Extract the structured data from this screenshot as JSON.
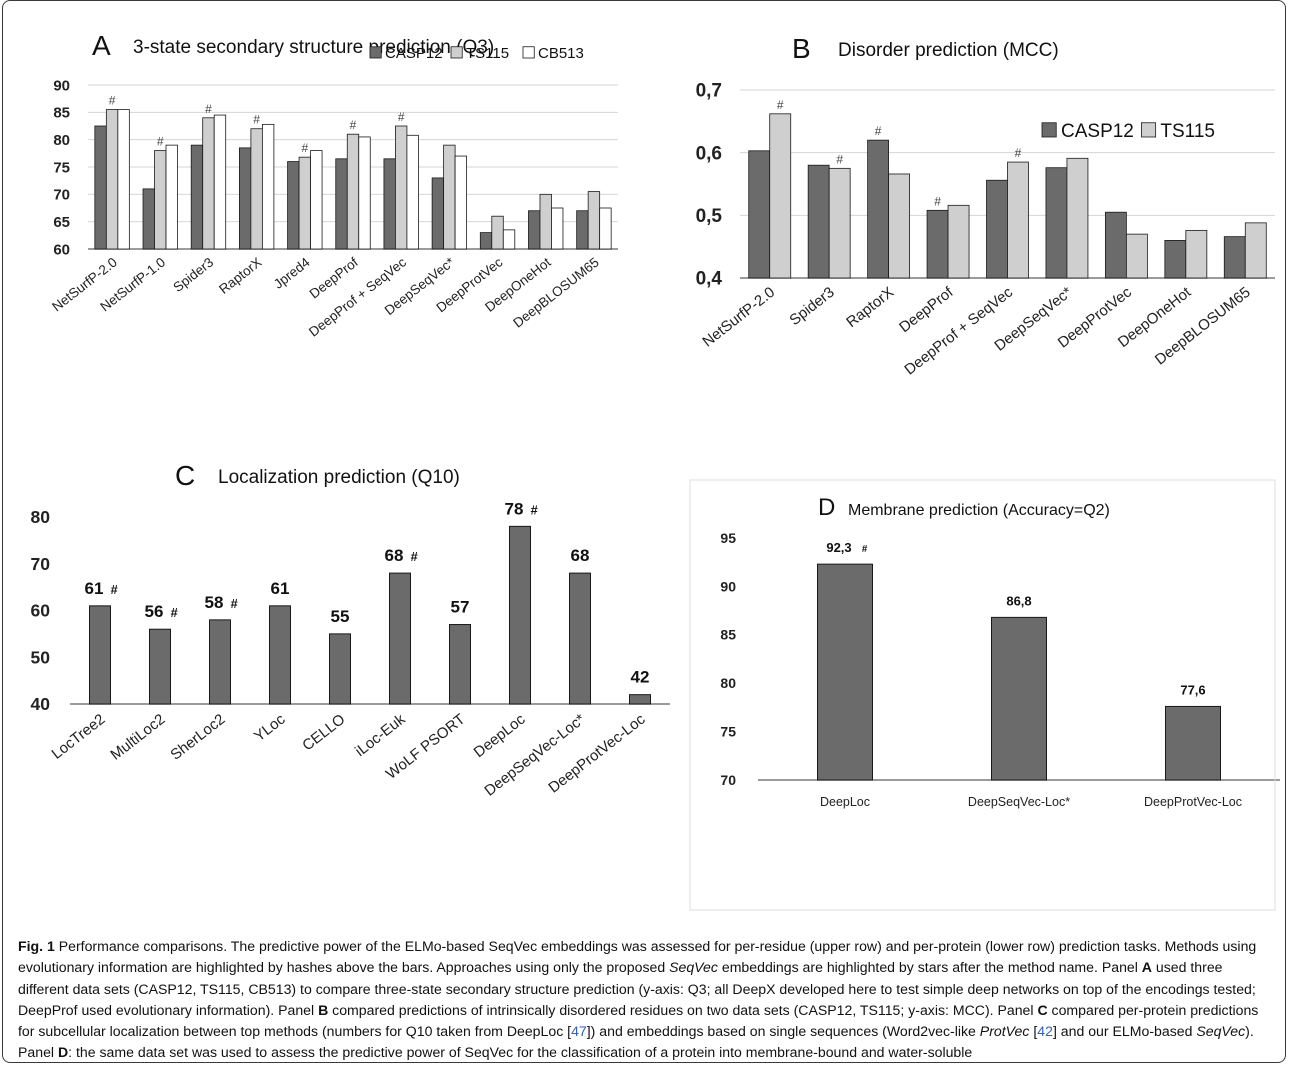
{
  "colors": {
    "bar_dark": "#6b6b6b",
    "bar_light": "#cfcfcf",
    "bar_white": "#ffffff",
    "outline": "#1a1a1a",
    "grid": "#d6d6d6",
    "hash": "#444444"
  },
  "chart_data": [
    {
      "panel": "A",
      "type": "bar",
      "title": "3-state secondary structure prediction (Q3)",
      "ylim": [
        60,
        90
      ],
      "yticks": [
        "60",
        "65",
        "70",
        "75",
        "80",
        "85",
        "90"
      ],
      "grid": true,
      "legend_position": "top-right",
      "categories": [
        "NetSurfP-2.0",
        "NetSurfP-1.0",
        "Spider3",
        "RaptorX",
        "Jpred4",
        "DeepProf",
        "DeepProf + SeqVec",
        "DeepSeqVec*",
        "DeepProtVec",
        "DeepOneHot",
        "DeepBLOSUM65"
      ],
      "series": [
        {
          "name": "CASP12",
          "values": [
            82.5,
            71,
            79,
            78.5,
            76,
            76.5,
            76.5,
            73,
            63,
            67,
            67
          ]
        },
        {
          "name": "TS115",
          "values": [
            85.5,
            78,
            84,
            82,
            76.8,
            81,
            82.5,
            79,
            66,
            70,
            70.5
          ]
        },
        {
          "name": "CB513",
          "values": [
            85.5,
            79,
            84.5,
            82.8,
            78,
            80.5,
            80.8,
            77,
            63.5,
            67.5,
            67.5
          ]
        }
      ],
      "hash_marks": [
        {
          "category": 0,
          "series": 1
        },
        {
          "category": 1,
          "series": 1
        },
        {
          "category": 2,
          "series": 1
        },
        {
          "category": 3,
          "series": 1
        },
        {
          "category": 4,
          "series": 1
        },
        {
          "category": 5,
          "series": 1
        },
        {
          "category": 6,
          "series": 1
        }
      ],
      "hash_symbol": "#"
    },
    {
      "panel": "B",
      "type": "bar",
      "title": "Disorder prediction (MCC)",
      "ylim": [
        0.4,
        0.7
      ],
      "yticks": [
        "0,4",
        "0,5",
        "0,6",
        "0,7"
      ],
      "grid": true,
      "legend_position": "top-right",
      "categories": [
        "NetSurfP-2.0",
        "Spider3",
        "RaptorX",
        "DeepProf",
        "DeepProf + SeqVec",
        "DeepSeqVec*",
        "DeepProtVec",
        "DeepOneHot",
        "DeepBLOSUM65"
      ],
      "series": [
        {
          "name": "CASP12",
          "values": [
            0.603,
            0.58,
            0.62,
            0.508,
            0.556,
            0.576,
            0.505,
            0.46,
            0.466
          ]
        },
        {
          "name": "TS115",
          "values": [
            0.662,
            0.575,
            0.566,
            0.516,
            0.585,
            0.591,
            0.47,
            0.476,
            0.488
          ]
        }
      ],
      "hash_marks": [
        {
          "category": 0,
          "series": 1
        },
        {
          "category": 1,
          "series": 1
        },
        {
          "category": 2,
          "series": 0
        },
        {
          "category": 3,
          "series": 0
        },
        {
          "category": 4,
          "series": 1
        }
      ],
      "hash_symbol": "#"
    },
    {
      "panel": "C",
      "type": "bar",
      "title": "Localization prediction (Q10)",
      "ylim": [
        40,
        80
      ],
      "yticks": [
        "40",
        "50",
        "60",
        "70",
        "80"
      ],
      "grid": false,
      "categories": [
        "LocTree2",
        "MultiLoc2",
        "SherLoc2",
        "YLoc",
        "CELLO",
        "iLoc-Euk",
        "WoLF PSORT",
        "DeepLoc",
        "DeepSeqVec-Loc*",
        "DeepProtVec-Loc"
      ],
      "values": [
        61,
        56,
        58,
        61,
        55,
        68,
        57,
        78,
        68,
        42
      ],
      "data_labels": [
        "61",
        "56",
        "58",
        "61",
        "55",
        "68",
        "57",
        "78",
        "68",
        "42"
      ],
      "hash_flags": [
        true,
        true,
        true,
        false,
        false,
        true,
        false,
        true,
        false,
        false
      ],
      "hash_symbol": "#"
    },
    {
      "panel": "D",
      "type": "bar",
      "title": "Membrane prediction (Accuracy=Q2)",
      "ylim": [
        70,
        95
      ],
      "yticks": [
        "70",
        "75",
        "80",
        "85",
        "90",
        "95"
      ],
      "grid": false,
      "categories": [
        "DeepLoc",
        "DeepSeqVec-Loc*",
        "DeepProtVec-Loc"
      ],
      "values": [
        92.3,
        86.8,
        77.6
      ],
      "data_labels": [
        "92,3",
        "86,8",
        "77,6"
      ],
      "hash_flags": [
        true,
        false,
        false
      ],
      "hash_symbol": "#"
    }
  ],
  "caption": {
    "fig_label": "Fig. 1",
    "s1": " Performance comparisons. The predictive power of the ELMo-based SeqVec embeddings was assessed for per-residue (upper row) and per-protein (lower row) prediction tasks. Methods using evolutionary information are highlighted by hashes above the bars. Approaches using only the proposed ",
    "s1_em": "SeqVec",
    "s2": " embeddings are highlighted by stars after the method name. Panel ",
    "pA": "A",
    "s3": " used three different data sets (CASP12, TS115, CB513) to compare three-state secondary structure prediction (y-axis: Q3; all DeepX developed here to test simple deep networks on top of the encodings tested; DeepProf used evolutionary information). Panel ",
    "pB": "B",
    "s4": " compared predictions of intrinsically disordered residues on two data sets (CASP12, TS115; y-axis: MCC). Panel ",
    "pC": "C",
    "s5": " compared per-protein predictions for subcellular localization between top methods (numbers for Q10 taken from DeepLoc [",
    "ref1": "47",
    "s6": "]) and embeddings based on single sequences (Word2vec-like ",
    "s6_em": "ProtVec",
    "s7": " [",
    "ref2": "42",
    "s8": "] and our ELMo-based ",
    "s8_em": "SeqVec",
    "s9": "). Panel ",
    "pD": "D",
    "s10": ": the same data set was used to assess the predictive power of SeqVec for the classification of a protein into membrane-bound and water-soluble"
  }
}
